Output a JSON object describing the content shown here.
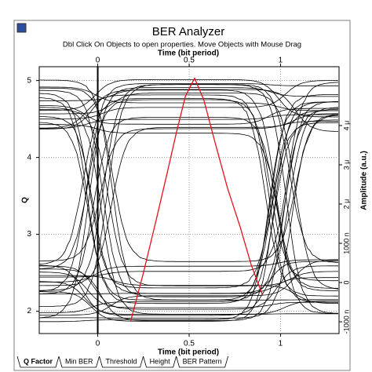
{
  "chart_data": {
    "type": "line",
    "title": "BER Analyzer",
    "subtitle": "Dbl Click On Objects to open properties.  Move Objects with Mouse Drag",
    "x_label": "Time (bit period)",
    "y_label": "Q",
    "y2_label": "Amplitude (a.u.)",
    "xlim": [
      -0.32,
      1.32
    ],
    "xticks": [
      0,
      0.5,
      1
    ],
    "ylim": [
      1.71,
      5.18
    ],
    "yticks": [
      2,
      3,
      4,
      5
    ],
    "y2lim": [
      -1.3e-06,
      5.5e-06
    ],
    "y2ticks": [
      {
        "value": -1e-06,
        "label": "-1000 n"
      },
      {
        "value": 0,
        "label": "0"
      },
      {
        "value": 1e-06,
        "label": "1000 n"
      },
      {
        "value": 2e-06,
        "label": "2 μ"
      },
      {
        "value": 3e-06,
        "label": "3 μ"
      },
      {
        "value": 4e-06,
        "label": "4 μ"
      }
    ],
    "grid": true,
    "series": [
      {
        "name": "Q Factor",
        "color": "#e8101a",
        "x": [
          0.18,
          0.25,
          0.32,
          0.38,
          0.43,
          0.48,
          0.53,
          0.58,
          0.64,
          0.71,
          0.78,
          0.84,
          0.9
        ],
        "values": [
          1.87,
          2.5,
          3.19,
          3.8,
          4.32,
          4.8,
          5.03,
          4.75,
          4.21,
          3.6,
          3.09,
          2.6,
          2.22
        ]
      }
    ]
  },
  "tabs": [
    "Q Factor",
    "Min BER",
    "Threshold",
    "Height",
    "BER Pattern"
  ]
}
